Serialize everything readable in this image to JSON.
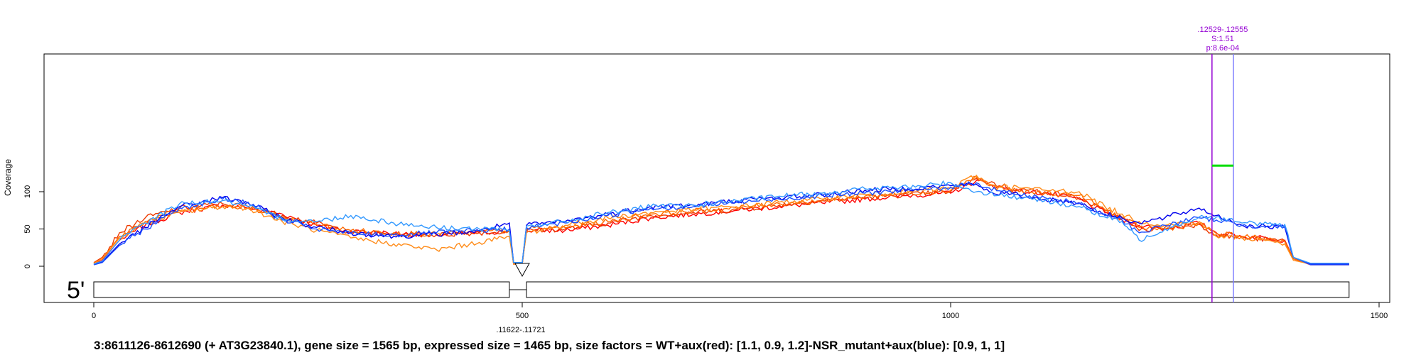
{
  "caption": "3:8611126-8612690 (+ AT3G23840.1), gene size = 1565 bp, expressed size = 1465 bp, size factors = WT+aux(red): [1.1, 0.9, 1.2]-NSR_mutant+aux(blue): [0.9, 1, 1]",
  "colors": {
    "red_group": [
      "#ff0000",
      "#ee3b00",
      "#ff6a00"
    ],
    "orange_series": "#ff8c1a",
    "blue_group": [
      "#0000ee",
      "#1c4fff",
      "#3399ff"
    ],
    "annotation": "#9400d3",
    "annotation_line2": "#8080ff",
    "significance_bar": "#00dd00"
  },
  "chart_data": {
    "type": "line",
    "title": "",
    "xlabel": "",
    "ylabel": "Coverage",
    "xlim": [
      0,
      1500
    ],
    "ylim": [
      -25,
      145
    ],
    "xticks": [
      0,
      500,
      1000,
      1500
    ],
    "xtick_labels": [
      "0",
      "500",
      "1000",
      "1500"
    ],
    "yticks": [
      0,
      50,
      100
    ],
    "ytick_labels": [
      "0",
      "50",
      "100"
    ],
    "grid": false,
    "five_prime_label": "5'",
    "gene_model": {
      "exons": [
        [
          0,
          485
        ],
        [
          505,
          1465
        ]
      ],
      "intron_label": ".11622-.11721",
      "intron_position": 500
    },
    "annotation": {
      "lines_x": [
        1305,
        1330
      ],
      "label_lines": [
        ".12529-.12555",
        "S:1.51",
        "p:8.6e-04"
      ],
      "bar_y": 135
    },
    "series": [
      {
        "group": "WT+aux",
        "color": "#ff0000",
        "x": [
          0,
          10,
          30,
          60,
          100,
          150,
          180,
          220,
          260,
          300,
          350,
          400,
          450,
          485,
          490,
          500,
          505,
          550,
          600,
          650,
          700,
          750,
          800,
          850,
          900,
          950,
          1000,
          1030,
          1045,
          1080,
          1110,
          1150,
          1180,
          1200,
          1220,
          1250,
          1290,
          1310,
          1340,
          1370,
          1390,
          1400,
          1420,
          1465
        ],
        "y": [
          3,
          8,
          35,
          55,
          72,
          82,
          78,
          70,
          55,
          47,
          44,
          42,
          45,
          47,
          3,
          3,
          48,
          48,
          55,
          65,
          70,
          75,
          80,
          85,
          90,
          95,
          98,
          115,
          110,
          100,
          98,
          90,
          72,
          62,
          55,
          50,
          58,
          45,
          40,
          38,
          35,
          10,
          2,
          2
        ]
      },
      {
        "group": "WT+aux",
        "color": "#ee3b00",
        "x": [
          0,
          10,
          30,
          60,
          100,
          150,
          180,
          220,
          260,
          300,
          350,
          400,
          450,
          485,
          490,
          500,
          505,
          550,
          600,
          650,
          700,
          750,
          800,
          850,
          900,
          950,
          1000,
          1030,
          1045,
          1080,
          1110,
          1150,
          1180,
          1200,
          1220,
          1250,
          1290,
          1310,
          1340,
          1370,
          1390,
          1400,
          1420,
          1465
        ],
        "y": [
          5,
          12,
          45,
          65,
          78,
          84,
          80,
          68,
          58,
          46,
          43,
          42,
          45,
          46,
          3,
          3,
          48,
          50,
          58,
          68,
          72,
          76,
          82,
          88,
          92,
          96,
          100,
          118,
          112,
          103,
          100,
          92,
          74,
          64,
          48,
          52,
          56,
          42,
          38,
          36,
          34,
          10,
          3,
          3
        ]
      },
      {
        "group": "WT+aux",
        "color": "#ff6a00",
        "x": [
          0,
          10,
          30,
          60,
          100,
          150,
          180,
          220,
          260,
          300,
          350,
          400,
          450,
          485,
          490,
          500,
          505,
          550,
          600,
          650,
          700,
          750,
          800,
          850,
          900,
          950,
          1000,
          1030,
          1045,
          1080,
          1110,
          1150,
          1180,
          1200,
          1220,
          1250,
          1290,
          1310,
          1340,
          1370,
          1390,
          1400,
          1420,
          1465
        ],
        "y": [
          4,
          10,
          40,
          60,
          75,
          80,
          78,
          66,
          56,
          48,
          45,
          43,
          46,
          48,
          3,
          3,
          50,
          52,
          60,
          70,
          74,
          78,
          84,
          88,
          94,
          98,
          102,
          120,
          108,
          100,
          98,
          95,
          76,
          66,
          52,
          50,
          57,
          44,
          40,
          37,
          33,
          10,
          3,
          3
        ]
      },
      {
        "group": "WT+aux",
        "color": "#ff8c1a",
        "x": [
          0,
          10,
          30,
          60,
          100,
          150,
          180,
          220,
          260,
          300,
          350,
          400,
          450,
          485,
          490,
          500,
          505,
          550,
          600,
          650,
          700,
          750,
          800,
          850,
          900,
          950,
          1000,
          1030,
          1045,
          1080,
          1110,
          1150,
          1180,
          1200,
          1220,
          1250,
          1290,
          1310,
          1340,
          1370,
          1390,
          1400,
          1420,
          1465
        ],
        "y": [
          4,
          10,
          38,
          58,
          72,
          80,
          78,
          60,
          48,
          38,
          30,
          22,
          32,
          40,
          3,
          3,
          45,
          55,
          65,
          72,
          76,
          80,
          86,
          90,
          96,
          100,
          105,
          122,
          110,
          105,
          102,
          100,
          80,
          70,
          60,
          55,
          60,
          40,
          38,
          35,
          30,
          8,
          3,
          3
        ]
      },
      {
        "group": "NSR_mutant+aux",
        "color": "#0000ee",
        "x": [
          0,
          10,
          30,
          60,
          100,
          150,
          180,
          220,
          260,
          300,
          350,
          400,
          450,
          485,
          490,
          500,
          505,
          550,
          600,
          650,
          700,
          750,
          800,
          850,
          900,
          950,
          1000,
          1030,
          1045,
          1080,
          1110,
          1150,
          1180,
          1200,
          1220,
          1250,
          1290,
          1310,
          1340,
          1370,
          1390,
          1400,
          1420,
          1465
        ],
        "y": [
          2,
          6,
          30,
          52,
          80,
          92,
          85,
          65,
          52,
          45,
          40,
          43,
          47,
          58,
          5,
          5,
          55,
          60,
          70,
          80,
          82,
          88,
          92,
          96,
          102,
          104,
          108,
          110,
          100,
          95,
          90,
          85,
          70,
          65,
          58,
          65,
          78,
          68,
          55,
          53,
          52,
          12,
          3,
          3
        ]
      },
      {
        "group": "NSR_mutant+aux",
        "color": "#1c4fff",
        "x": [
          0,
          10,
          30,
          60,
          100,
          150,
          180,
          220,
          260,
          300,
          350,
          400,
          450,
          485,
          490,
          500,
          505,
          550,
          600,
          650,
          700,
          750,
          800,
          850,
          900,
          950,
          1000,
          1030,
          1045,
          1080,
          1110,
          1150,
          1180,
          1200,
          1220,
          1250,
          1290,
          1310,
          1340,
          1370,
          1390,
          1400,
          1420,
          1465
        ],
        "y": [
          2,
          5,
          28,
          50,
          78,
          90,
          86,
          62,
          50,
          44,
          42,
          45,
          48,
          50,
          5,
          5,
          52,
          58,
          68,
          78,
          80,
          86,
          90,
          95,
          98,
          102,
          106,
          112,
          105,
          96,
          92,
          84,
          68,
          62,
          45,
          55,
          65,
          62,
          55,
          54,
          53,
          12,
          2,
          2
        ]
      },
      {
        "group": "NSR_mutant+aux",
        "color": "#3399ff",
        "x": [
          0,
          10,
          30,
          60,
          100,
          150,
          180,
          220,
          260,
          300,
          350,
          400,
          450,
          485,
          490,
          500,
          505,
          550,
          600,
          650,
          700,
          750,
          800,
          850,
          900,
          950,
          1000,
          1030,
          1045,
          1080,
          1110,
          1150,
          1180,
          1200,
          1220,
          1250,
          1290,
          1310,
          1340,
          1370,
          1390,
          1400,
          1420,
          1465
        ],
        "y": [
          3,
          7,
          35,
          58,
          84,
          88,
          80,
          64,
          60,
          68,
          58,
          52,
          50,
          48,
          5,
          5,
          54,
          60,
          72,
          80,
          82,
          88,
          94,
          98,
          104,
          106,
          112,
          100,
          98,
          92,
          88,
          80,
          66,
          60,
          35,
          50,
          66,
          66,
          58,
          57,
          56,
          12,
          4,
          4
        ]
      }
    ]
  }
}
